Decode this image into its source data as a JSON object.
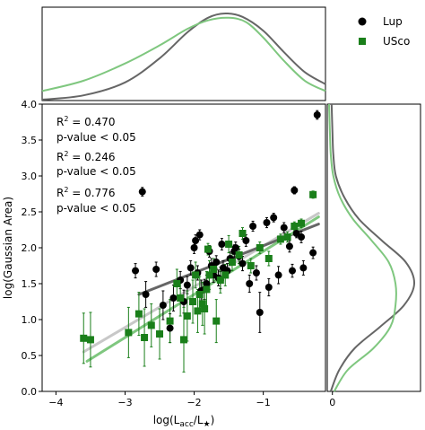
{
  "chart_data": {
    "type": "scatter",
    "xlabel_main": "log(L",
    "xlabel_sub": "acc",
    "xlabel_mid": "/L",
    "xlabel_sub2": "★",
    "xlabel_end": ")",
    "ylabel": "log(Gaussian Area)",
    "xlim": [
      -4.2,
      -0.1
    ],
    "ylim": [
      0.0,
      4.0
    ],
    "xticks": [
      -4,
      -3,
      -2,
      -1,
      0
    ],
    "xtick_labels": [
      "−4",
      "−3",
      "−2",
      "−1",
      "0"
    ],
    "yticks": [
      0.0,
      0.5,
      1.0,
      1.5,
      2.0,
      2.5,
      3.0,
      3.5,
      4.0
    ],
    "ytick_labels": [
      "0.0",
      "0.5",
      "1.0",
      "1.5",
      "2.0",
      "2.5",
      "3.0",
      "3.5",
      "4.0"
    ],
    "legend": {
      "placement": "top-right",
      "entries": [
        {
          "label": "Lup",
          "marker": "circle",
          "color": "#000000"
        },
        {
          "label": "USco",
          "marker": "square",
          "color": "#1a7f1a"
        }
      ]
    },
    "annotations": [
      {
        "r2_prefix": "R",
        "r2_sup": "2",
        "r2_value": " = 0.470",
        "pvalue": "p-value < 0.05",
        "color": "#808080"
      },
      {
        "r2_prefix": "R",
        "r2_sup": "2",
        "r2_value": " = 0.246",
        "pvalue": "p-value < 0.05",
        "color": "#000000"
      },
      {
        "r2_prefix": "R",
        "r2_sup": "2",
        "r2_value": " = 0.776",
        "pvalue": "p-value < 0.05",
        "color": "#1a7f1a"
      }
    ],
    "fits": [
      {
        "group": "all",
        "color": "#c8c8c8",
        "x": [
          -3.6,
          -0.2
        ],
        "y": [
          0.55,
          2.48
        ]
      },
      {
        "group": "Lup",
        "color": "#666666",
        "x": [
          -2.8,
          -0.2
        ],
        "y": [
          1.35,
          2.33
        ]
      },
      {
        "group": "USco",
        "color": "#7fc77f",
        "x": [
          -3.55,
          -0.2
        ],
        "y": [
          0.42,
          2.43
        ]
      }
    ],
    "series": [
      {
        "name": "Lup",
        "marker": "circle",
        "color": "#000000",
        "x": [
          -0.22,
          -0.28,
          -0.55,
          -0.42,
          -0.58,
          -0.85,
          -0.95,
          -0.45,
          -0.62,
          -0.52,
          -0.78,
          -0.92,
          -1.05,
          -1.15,
          -1.25,
          -1.35,
          -1.42,
          -1.52,
          -1.58,
          -1.62,
          -1.68,
          -1.72,
          -1.78,
          -1.82,
          -1.85,
          -1.9,
          -1.95,
          -2.05,
          -2.1,
          -2.2,
          -2.3,
          -2.45,
          -2.55,
          -2.7,
          -2.75,
          -2.85,
          -1.3,
          -1.48,
          -1.6,
          -1.75,
          -1.92,
          -2.0,
          -1.1,
          -1.2,
          -0.7,
          -1.65,
          -2.15,
          -2.35,
          -1.4,
          -1.98
        ],
        "y": [
          3.85,
          1.93,
          2.8,
          1.72,
          1.68,
          2.42,
          2.35,
          2.15,
          2.02,
          2.2,
          1.62,
          1.45,
          1.1,
          2.3,
          2.1,
          1.88,
          1.95,
          1.68,
          1.72,
          1.55,
          1.8,
          1.62,
          1.95,
          1.5,
          1.42,
          1.4,
          1.65,
          1.72,
          1.48,
          1.55,
          1.3,
          1.2,
          1.7,
          1.35,
          2.78,
          1.68,
          1.78,
          1.85,
          2.05,
          1.75,
          2.18,
          2.0,
          1.65,
          1.5,
          2.28,
          1.58,
          1.25,
          0.88,
          2.0,
          2.1
        ],
        "yerr": [
          0.06,
          0.08,
          0.05,
          0.1,
          0.09,
          0.06,
          0.07,
          0.08,
          0.08,
          0.06,
          0.12,
          0.12,
          0.28,
          0.07,
          0.08,
          0.1,
          0.09,
          0.1,
          0.1,
          0.12,
          0.09,
          0.1,
          0.08,
          0.12,
          0.14,
          0.15,
          0.1,
          0.1,
          0.12,
          0.12,
          0.18,
          0.2,
          0.1,
          0.18,
          0.06,
          0.1,
          0.1,
          0.09,
          0.08,
          0.1,
          0.07,
          0.08,
          0.1,
          0.12,
          0.07,
          0.11,
          0.16,
          0.2,
          0.08,
          0.08
        ]
      },
      {
        "name": "USco",
        "marker": "square",
        "color": "#1a7f1a",
        "x": [
          -0.28,
          -0.45,
          -0.65,
          -0.75,
          -0.92,
          -1.05,
          -1.18,
          -1.3,
          -1.35,
          -1.45,
          -1.55,
          -1.62,
          -1.72,
          -1.78,
          -1.82,
          -1.85,
          -1.88,
          -1.92,
          -1.95,
          -2.02,
          -2.1,
          -2.15,
          -2.2,
          -2.35,
          -2.5,
          -2.62,
          -2.72,
          -2.8,
          -2.95,
          -3.5,
          -3.6,
          -1.68,
          -1.8,
          -2.25,
          -1.98,
          -1.5,
          -0.55
        ],
        "y": [
          2.74,
          2.34,
          2.15,
          2.12,
          1.85,
          2.0,
          1.75,
          2.2,
          1.9,
          1.8,
          1.62,
          1.55,
          1.7,
          1.62,
          1.42,
          1.15,
          1.22,
          1.35,
          1.12,
          1.25,
          1.05,
          0.72,
          1.3,
          0.98,
          0.8,
          0.92,
          0.75,
          1.08,
          0.82,
          0.72,
          0.74,
          0.98,
          1.98,
          1.5,
          1.62,
          2.05,
          2.3
        ],
        "yerr": [
          0.05,
          0.06,
          0.07,
          0.07,
          0.1,
          0.08,
          0.1,
          0.08,
          0.12,
          0.12,
          0.15,
          0.18,
          0.15,
          0.2,
          0.25,
          0.35,
          0.3,
          0.25,
          0.3,
          0.3,
          0.35,
          0.45,
          0.25,
          0.3,
          0.35,
          0.3,
          0.4,
          0.3,
          0.35,
          0.38,
          0.35,
          0.3,
          0.08,
          0.2,
          0.18,
          0.12,
          0.06
        ]
      }
    ],
    "top_kde": [
      {
        "group": "Lup",
        "color": "#666666",
        "x": [
          -4.2,
          -3.6,
          -3.0,
          -2.5,
          -2.1,
          -1.8,
          -1.55,
          -1.3,
          -1.0,
          -0.7,
          -0.4,
          -0.1
        ],
        "density": [
          0.0,
          0.05,
          0.2,
          0.48,
          0.78,
          0.95,
          1.0,
          0.96,
          0.8,
          0.55,
          0.32,
          0.18
        ]
      },
      {
        "group": "USco",
        "color": "#7fc77f",
        "x": [
          -4.2,
          -3.6,
          -3.0,
          -2.5,
          -2.1,
          -1.8,
          -1.5,
          -1.25,
          -1.0,
          -0.7,
          -0.4,
          -0.1
        ],
        "density": [
          0.1,
          0.22,
          0.42,
          0.63,
          0.82,
          0.92,
          0.95,
          0.9,
          0.72,
          0.45,
          0.22,
          0.1
        ]
      }
    ],
    "right_kde": [
      {
        "group": "Lup",
        "color": "#666666",
        "y": [
          0.0,
          0.3,
          0.6,
          0.9,
          1.2,
          1.5,
          1.8,
          2.1,
          2.4,
          2.7,
          3.0,
          3.3,
          3.6,
          4.0
        ],
        "density": [
          0.02,
          0.12,
          0.3,
          0.6,
          0.88,
          1.0,
          0.9,
          0.62,
          0.35,
          0.18,
          0.08,
          0.05,
          0.04,
          0.03
        ]
      },
      {
        "group": "USco",
        "color": "#7fc77f",
        "y": [
          0.0,
          0.3,
          0.6,
          0.9,
          1.2,
          1.5,
          1.8,
          2.1,
          2.4,
          2.7,
          3.0,
          3.3,
          3.6,
          4.0
        ],
        "density": [
          0.06,
          0.22,
          0.52,
          0.72,
          0.78,
          0.78,
          0.7,
          0.5,
          0.28,
          0.13,
          0.05,
          0.02,
          0.01,
          0.0
        ]
      }
    ]
  }
}
